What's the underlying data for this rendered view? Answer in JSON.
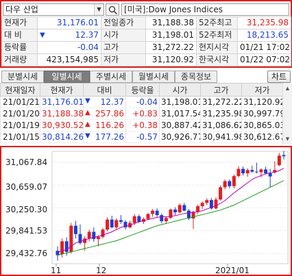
{
  "search": {
    "market": "다우 산업",
    "symbol_name": "[미국]:Dow Jones Indices"
  },
  "quote": {
    "rows": [
      {
        "l1": "현재가",
        "v1": "31,176.01",
        "l2": "전일종가",
        "v2": "31,188.38",
        "l3": "52주최고",
        "v3": "31,235.98"
      },
      {
        "l1": "대  비",
        "v1": "12.37",
        "l2": "시가",
        "v2": "31,198.01",
        "l3": "52주최저",
        "v3": "18,213.65"
      },
      {
        "l1": "등락률",
        "v1": "-0.04",
        "l2": "고가",
        "v2": "31,272.22",
        "l3": "현지시각",
        "v3": "01/21 17:02"
      },
      {
        "l1": "거래량",
        "v1": "423,154,985",
        "l2": "저가",
        "v2": "31,120.92",
        "l3": "한국시각",
        "v3": "01/22 07:02"
      }
    ],
    "change_arrow": "▼"
  },
  "tabs": {
    "items": [
      "분별시세",
      "일별시세",
      "주별시세",
      "월별시세",
      "종목정보"
    ],
    "active_index": 1,
    "chart_button": "차트"
  },
  "grid": {
    "headers": [
      "현재일자",
      "현재가",
      "대비",
      "등락율",
      "시가",
      "고가",
      "저가"
    ],
    "rows": [
      {
        "date": "21/01/21",
        "price": "31,176.01",
        "arrow": "▼",
        "change": "12.37",
        "rate": "-0.04",
        "open": "31,198.01",
        "high": "31,272.22",
        "low": "31,120.92",
        "dir": "down"
      },
      {
        "date": "21/01/20",
        "price": "31,188.38",
        "arrow": "▲",
        "change": "257.86",
        "rate": "+0.83",
        "open": "31,017.54",
        "high": "31,235.98",
        "low": "30,997.79",
        "dir": "up"
      },
      {
        "date": "21/01/19",
        "price": "30,930.52",
        "arrow": "▲",
        "change": "116.26",
        "rate": "+0.38",
        "open": "30,887.42",
        "high": "31,086.62",
        "low": "30,865.03",
        "dir": "up"
      },
      {
        "date": "21/01/15",
        "price": "30,814.26",
        "arrow": "▼",
        "change": "177.26",
        "rate": "-0.57",
        "open": "30,926.77",
        "high": "30,941.98",
        "low": "30,612.67",
        "dir": "down"
      }
    ]
  },
  "chart": {
    "y_labels": [
      "31,067.84",
      "30,659.07",
      "30,250.30",
      "29,841.53",
      "29,432.76"
    ],
    "x_labels": [
      "11",
      "12",
      "2021/01"
    ]
  },
  "colors": {
    "up": "#e02020",
    "down": "#1f3fd1",
    "ma_short": "#b000b0",
    "ma_long": "#1a9a1a",
    "frame": "#e21b1b"
  },
  "chart_data": {
    "type": "candlestick",
    "y_ticks": [
      31067.84,
      30659.07,
      30250.3,
      29841.53,
      29432.76
    ],
    "x_ticks": [
      "11",
      "12",
      "2021/01"
    ],
    "series": [
      {
        "name": "candles",
        "ohlc": [
          [
            29480,
            29560,
            29300,
            29400
          ],
          [
            29420,
            29700,
            29360,
            29650
          ],
          [
            29650,
            29720,
            29390,
            29460
          ],
          [
            29460,
            29980,
            29430,
            29930
          ],
          [
            29930,
            30020,
            29700,
            29780
          ],
          [
            29780,
            29950,
            29590,
            29620
          ],
          [
            29620,
            29740,
            29480,
            29700
          ],
          [
            29700,
            29860,
            29650,
            29820
          ],
          [
            29820,
            29900,
            29640,
            29690
          ],
          [
            29690,
            29760,
            29560,
            29730
          ],
          [
            29730,
            29890,
            29700,
            29860
          ],
          [
            29860,
            30080,
            29830,
            30040
          ],
          [
            30040,
            30110,
            29880,
            29900
          ],
          [
            29900,
            30060,
            29860,
            30030
          ],
          [
            30030,
            30120,
            29960,
            30000
          ],
          [
            30000,
            30030,
            29860,
            29900
          ],
          [
            29900,
            30020,
            29880,
            29980
          ],
          [
            29980,
            30140,
            29940,
            30100
          ],
          [
            30100,
            30130,
            29980,
            30000
          ],
          [
            30000,
            30080,
            29960,
            30050
          ],
          [
            30050,
            30160,
            30030,
            30140
          ],
          [
            30140,
            30230,
            30090,
            30200
          ],
          [
            30200,
            30240,
            30090,
            30120
          ],
          [
            30120,
            30150,
            29970,
            30010
          ],
          [
            30010,
            30090,
            29960,
            30070
          ],
          [
            30070,
            30240,
            30050,
            30220
          ],
          [
            30220,
            30260,
            30120,
            30170
          ],
          [
            30170,
            30330,
            30150,
            30300
          ],
          [
            30300,
            30340,
            30190,
            30200
          ],
          [
            30200,
            30230,
            30030,
            30060
          ],
          [
            30060,
            30200,
            29870,
            30180
          ],
          [
            30180,
            30310,
            30140,
            30280
          ],
          [
            30280,
            30370,
            30230,
            30340
          ],
          [
            30340,
            30420,
            30300,
            30390
          ],
          [
            30390,
            30430,
            30220,
            30240
          ],
          [
            30240,
            30440,
            30220,
            30400
          ],
          [
            30400,
            30650,
            30380,
            30620
          ],
          [
            30620,
            30760,
            30580,
            30730
          ],
          [
            30730,
            30760,
            30600,
            30640
          ],
          [
            30640,
            30850,
            30600,
            30820
          ],
          [
            30820,
            31000,
            30800,
            30950
          ],
          [
            30950,
            30990,
            30830,
            30870
          ],
          [
            30870,
            30960,
            30810,
            30930
          ],
          [
            30930,
            31010,
            30880,
            30900
          ],
          [
            30900,
            31060,
            30870,
            30890
          ],
          [
            30890,
            30960,
            30800,
            30940
          ],
          [
            30940,
            30990,
            30850,
            30870
          ],
          [
            30870,
            30950,
            30610,
            30814
          ],
          [
            30887,
            31086,
            30865,
            30930
          ],
          [
            31017,
            31235,
            30997,
            31188
          ],
          [
            31198,
            31272,
            31120,
            31176
          ]
        ]
      },
      {
        "name": "ma_short",
        "values": [
          29460,
          29480,
          29500,
          29560,
          29620,
          29650,
          29670,
          29700,
          29720,
          29740,
          29760,
          29790,
          29820,
          29860,
          29900,
          29920,
          29940,
          29970,
          30000,
          30020,
          30040,
          30060,
          30080,
          30090,
          30090,
          30100,
          30110,
          30130,
          30150,
          30160,
          30170,
          30180,
          30200,
          30230,
          30260,
          30290,
          30330,
          30380,
          30450,
          30520,
          30580,
          30640,
          30700,
          30760,
          30800,
          30830,
          30860,
          30880,
          30890,
          30920,
          30960
        ]
      },
      {
        "name": "ma_long",
        "values": [
          29400,
          29420,
          29440,
          29460,
          29480,
          29500,
          29520,
          29540,
          29560,
          29580,
          29600,
          29620,
          29640,
          29660,
          29690,
          29720,
          29750,
          29780,
          29810,
          29840,
          29870,
          29900,
          29930,
          29950,
          29970,
          29990,
          30010,
          30030,
          30050,
          30070,
          30090,
          30110,
          30130,
          30150,
          30170,
          30190,
          30210,
          30240,
          30270,
          30300,
          30340,
          30380,
          30420,
          30460,
          30500,
          30540,
          30580,
          30620,
          30660,
          30700,
          30740
        ]
      }
    ]
  }
}
